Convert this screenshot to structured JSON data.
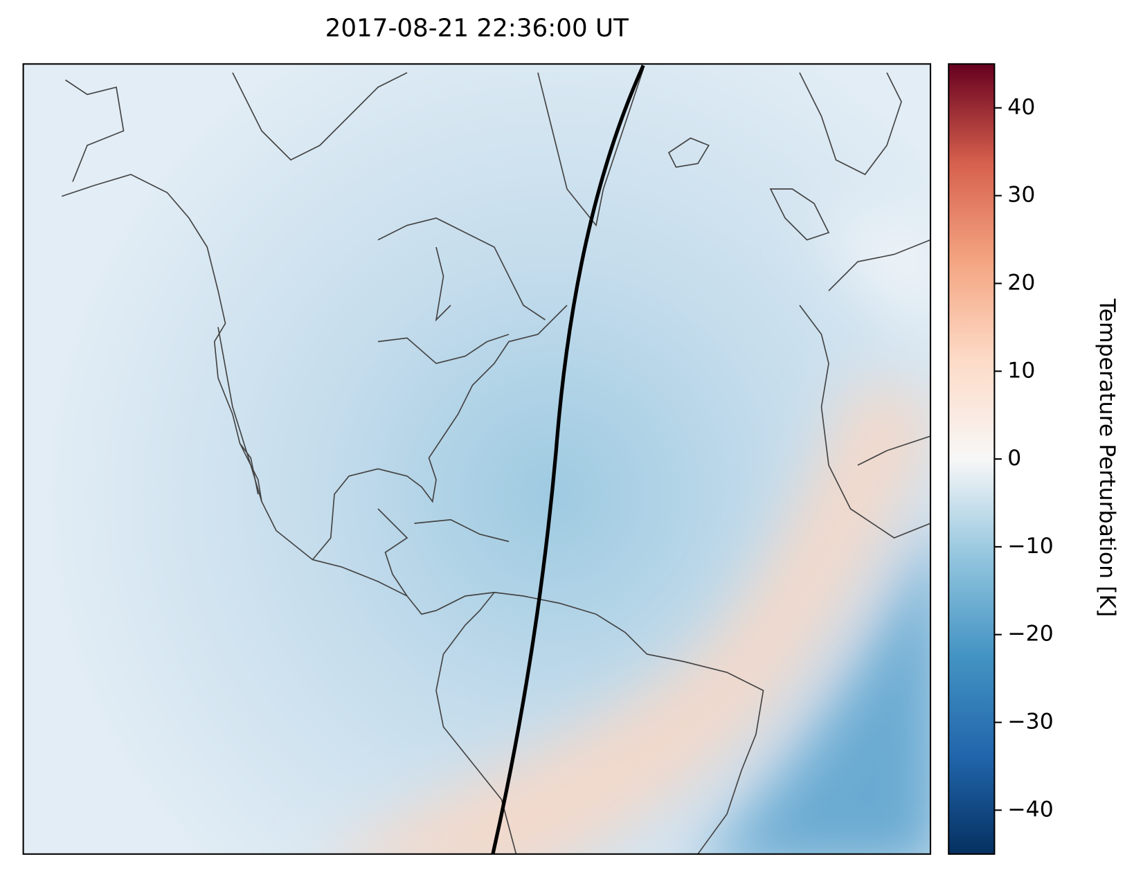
{
  "chart_data": {
    "type": "map",
    "title": "2017-08-21 22:36:00 UT",
    "colorbar_label": "Temperature Perturbation [K]",
    "clim": [
      -45,
      45
    ],
    "cticks": [
      {
        "value": -40,
        "label": "−40"
      },
      {
        "value": -30,
        "label": "−30"
      },
      {
        "value": -20,
        "label": "−20"
      },
      {
        "value": -10,
        "label": "−10"
      },
      0,
      10,
      20,
      30,
      40
    ]
  }
}
